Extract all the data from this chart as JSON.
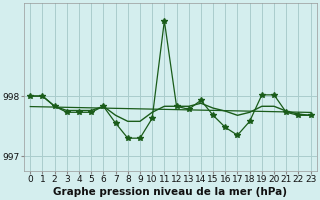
{
  "title": "Graphe pression niveau de la mer (hPa)",
  "bg_color": "#d4eeee",
  "grid_color": "#aacccc",
  "line_color": "#1a5c1a",
  "x_values": [
    0,
    1,
    2,
    3,
    4,
    5,
    6,
    7,
    8,
    9,
    10,
    11,
    12,
    13,
    14,
    15,
    16,
    17,
    18,
    19,
    20,
    21,
    22,
    23
  ],
  "y_main": [
    998.0,
    998.0,
    997.83,
    997.73,
    997.73,
    997.73,
    997.83,
    997.55,
    997.3,
    997.3,
    997.63,
    999.25,
    997.83,
    997.78,
    997.93,
    997.68,
    997.48,
    997.35,
    997.58,
    998.02,
    998.02,
    997.73,
    997.68,
    997.68
  ],
  "y_smooth": [
    998.0,
    998.0,
    997.83,
    997.76,
    997.76,
    997.76,
    997.83,
    997.68,
    997.58,
    997.58,
    997.73,
    997.83,
    997.83,
    997.83,
    997.88,
    997.8,
    997.75,
    997.68,
    997.73,
    997.83,
    997.83,
    997.75,
    997.7,
    997.68
  ],
  "ylim": [
    996.75,
    999.55
  ],
  "yticks": [
    997,
    998
  ],
  "ytick_labels": [
    "997",
    "998"
  ],
  "title_fontsize": 7.5,
  "tick_fontsize": 6.5
}
